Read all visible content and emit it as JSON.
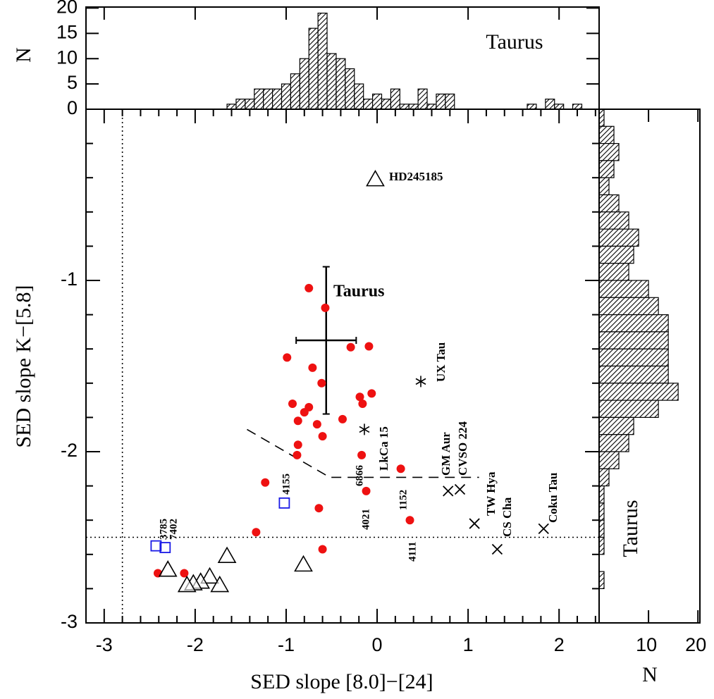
{
  "chart_data": [
    {
      "type": "scatter",
      "xlabel": "SED slope [8.0]−[24]",
      "ylabel": "SED slope K−[5.8]",
      "xlim": [
        -3.2,
        2.44
      ],
      "ylim": [
        -3,
        0
      ],
      "xticks": [
        -3,
        -2,
        -1,
        0,
        1,
        2
      ],
      "yticks": [
        -3,
        -2,
        -1
      ],
      "xminorticks": [
        -2.8,
        -2.6,
        -2.4,
        -2.2,
        -1.8,
        -1.6,
        -1.4,
        -1.2,
        -0.8,
        -0.6,
        -0.4,
        -0.2,
        0.2,
        0.4,
        0.6,
        0.8,
        1.2,
        1.4,
        1.6,
        1.8,
        2.2,
        2.4
      ],
      "yminorticks": [
        -2.8,
        -2.6,
        -2.4,
        -2.2,
        -1.8,
        -1.6,
        -1.4,
        -1.2,
        -0.8,
        -0.6,
        -0.4,
        -0.2
      ],
      "series": [
        {
          "marker": "circle",
          "color": "#ee1111",
          "x": [
            -0.75,
            -0.57,
            -0.29,
            -0.09,
            -0.99,
            -0.71,
            -0.61,
            -0.06,
            -0.93,
            -0.16,
            -0.75,
            -0.8,
            -0.19,
            -0.38,
            -0.87,
            -0.66,
            -0.6,
            -0.87,
            -0.88,
            -0.17,
            0.26,
            -1.23,
            -0.12,
            -0.64,
            0.36,
            -1.33,
            -0.6,
            -2.41,
            -2.12
          ],
          "y": [
            -1.045,
            -1.16,
            -1.39,
            -1.385,
            -1.45,
            -1.51,
            -1.6,
            -1.66,
            -1.72,
            -1.72,
            -1.74,
            -1.77,
            -1.68,
            -1.81,
            -1.82,
            -1.84,
            -1.91,
            -1.96,
            -2.02,
            -2.02,
            -2.1,
            -2.18,
            -2.23,
            -2.33,
            -2.4,
            -2.47,
            -2.57,
            -2.71,
            -2.71
          ]
        },
        {
          "marker": "triangle",
          "color": "#000000",
          "x": [
            -0.02,
            -0.81,
            -1.65,
            -2.3,
            -1.84,
            -1.73,
            -1.94,
            -2.02,
            -2.09
          ],
          "y": [
            -0.41,
            -2.66,
            -2.61,
            -2.69,
            -2.73,
            -2.78,
            -2.76,
            -2.77,
            -2.78
          ]
        },
        {
          "marker": "square",
          "color": "#1a1ae6",
          "x": [
            -1.02,
            -2.43,
            -2.33
          ],
          "y": [
            -2.3,
            -2.55,
            -2.56
          ]
        },
        {
          "marker": "cross",
          "color": "#000000",
          "x": [
            0.78,
            0.91,
            1.07,
            1.32,
            1.83
          ],
          "y": [
            -2.23,
            -2.22,
            -2.42,
            -2.57,
            -2.45
          ]
        },
        {
          "marker": "asterisk",
          "color": "#000000",
          "x": [
            0.48,
            -0.14
          ],
          "y": [
            -1.59,
            -1.87
          ]
        }
      ],
      "errorbar": {
        "x": -0.56,
        "y": -1.35,
        "xerr": 0.33,
        "yerr": 0.43
      },
      "dashed_line": {
        "x": [
          -1.43,
          -0.52,
          1.12
        ],
        "y": [
          -1.87,
          -2.15,
          -2.15
        ]
      },
      "hline": -2.5,
      "vline": -2.8,
      "annotations": [
        "HD245185",
        "Taurus",
        "UX Tau",
        "LkCa 15",
        "GM Aur",
        "CVSO 224",
        "TW Hya",
        "CS Cha",
        "Coku Tau",
        "4155",
        "3785",
        "7402",
        "6866",
        "4021",
        "1152",
        "4111"
      ]
    },
    {
      "type": "histogram",
      "orientation": "vertical",
      "ylabel": "N",
      "label": "Taurus",
      "bins": [
        -1.65,
        -1.55,
        -1.45,
        -1.35,
        -1.25,
        -1.15,
        -1.05,
        -0.95,
        -0.85,
        -0.75,
        -0.65,
        -0.55,
        -0.45,
        -0.35,
        -0.25,
        -0.15,
        -0.05,
        0.05,
        0.15,
        0.25,
        0.35,
        0.45,
        0.55,
        0.65,
        0.75,
        0.85,
        0.95,
        1.05,
        1.15,
        1.25,
        1.35,
        1.45,
        1.55,
        1.65,
        1.75,
        1.85,
        1.95,
        2.05,
        2.15,
        2.25
      ],
      "counts": [
        1,
        2,
        2,
        4,
        4,
        4,
        5,
        7,
        10,
        16,
        19,
        11,
        10,
        8,
        5,
        2,
        3,
        2,
        4,
        1,
        1,
        4,
        1,
        3,
        3,
        0,
        0,
        0,
        0,
        0,
        0,
        0,
        0,
        1,
        0,
        2,
        1,
        0,
        1
      ],
      "xlim": [
        -3.2,
        2.44
      ],
      "ylim": [
        0,
        20.2
      ],
      "yticks": [
        0,
        5,
        10,
        15,
        20
      ]
    },
    {
      "type": "histogram",
      "orientation": "horizontal",
      "xlabel": "N",
      "label": "Taurus",
      "bins": [
        0,
        -0.1,
        -0.2,
        -0.3,
        -0.4,
        -0.5,
        -0.6,
        -0.7,
        -0.8,
        -0.9,
        -1.0,
        -1.1,
        -1.2,
        -1.3,
        -1.4,
        -1.5,
        -1.6,
        -1.7,
        -1.8,
        -1.9,
        -2.0,
        -2.1,
        -2.2,
        -2.3,
        -2.4,
        -2.5,
        -2.6,
        -2.7,
        -2.8,
        -2.9
      ],
      "counts": [
        1,
        3,
        4,
        3,
        2,
        4,
        6,
        8,
        7,
        6,
        10,
        12,
        14,
        14,
        14,
        14,
        16,
        12,
        7,
        6,
        4,
        2,
        1,
        1,
        1,
        1,
        0,
        1,
        0
      ],
      "xlim": [
        0,
        20.4
      ],
      "ylim": [
        -3,
        0
      ],
      "xticks": [
        10,
        20
      ]
    }
  ]
}
